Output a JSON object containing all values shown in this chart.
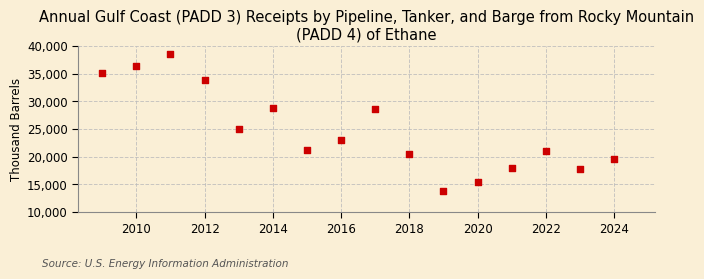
{
  "title": "Annual Gulf Coast (PADD 3) Receipts by Pipeline, Tanker, and Barge from Rocky Mountain\n(PADD 4) of Ethane",
  "ylabel": "Thousand Barrels",
  "source": "Source: U.S. Energy Information Administration",
  "background_color": "#faefd6",
  "years": [
    2009,
    2010,
    2011,
    2012,
    2013,
    2014,
    2015,
    2016,
    2017,
    2018,
    2019,
    2020,
    2021,
    2022,
    2023,
    2024
  ],
  "values": [
    35200,
    36400,
    38500,
    33800,
    25100,
    28900,
    21300,
    23100,
    28700,
    20500,
    13800,
    15400,
    18000,
    21000,
    17700,
    19600
  ],
  "marker_color": "#cc0000",
  "marker_size": 5,
  "ylim": [
    10000,
    40000
  ],
  "yticks": [
    10000,
    15000,
    20000,
    25000,
    30000,
    35000,
    40000
  ],
  "xticks": [
    2010,
    2012,
    2014,
    2016,
    2018,
    2020,
    2022,
    2024
  ],
  "xlim": [
    2008.3,
    2025.2
  ],
  "title_fontsize": 10.5,
  "axis_fontsize": 8.5,
  "source_fontsize": 7.5,
  "grid_color": "#bbbbbb",
  "grid_style": "--",
  "grid_alpha": 0.8
}
